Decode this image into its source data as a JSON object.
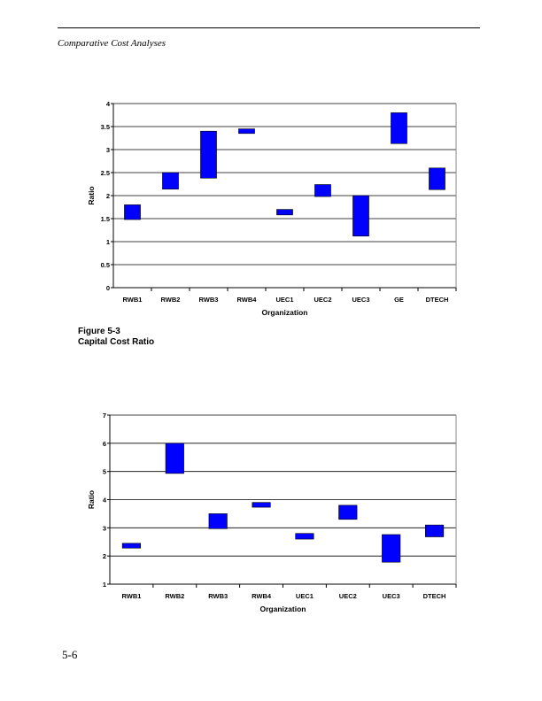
{
  "header": {
    "running_title": "Comparative Cost Analyses"
  },
  "figure_caption": {
    "number": "Figure 5-3",
    "title": "Capital Cost Ratio"
  },
  "page_number": "5-6",
  "chart_data": [
    {
      "type": "bar",
      "subtype": "floating-range",
      "categories": [
        "RWB1",
        "RWB2",
        "RWB3",
        "RWB4",
        "UEC1",
        "UEC2",
        "UEC3",
        "GE",
        "DTECH"
      ],
      "low": [
        1.48,
        2.14,
        2.38,
        3.35,
        1.58,
        1.98,
        1.12,
        3.13,
        2.13
      ],
      "high": [
        1.8,
        2.5,
        3.4,
        3.45,
        1.7,
        2.24,
        2.0,
        3.8,
        2.6
      ],
      "xlabel": "Organization",
      "ylabel": "Ratio",
      "ylim": [
        0,
        4
      ],
      "yticks": [
        "0",
        "0.5",
        "1",
        "1.5",
        "2",
        "2.5",
        "3",
        "3.5",
        "4"
      ],
      "grid": true,
      "color": "#0000ff"
    },
    {
      "type": "bar",
      "subtype": "floating-range",
      "categories": [
        "RWB1",
        "RWB2",
        "RWB3",
        "RWB4",
        "UEC1",
        "UEC2",
        "UEC3",
        "DTECH"
      ],
      "low": [
        2.28,
        4.93,
        2.97,
        3.73,
        2.6,
        3.3,
        1.78,
        2.68
      ],
      "high": [
        2.45,
        6.0,
        3.5,
        3.9,
        2.8,
        3.8,
        2.76,
        3.1
      ],
      "xlabel": "Organization",
      "ylabel": "Ratio",
      "ylim": [
        1,
        7
      ],
      "yticks": [
        "1",
        "2",
        "3",
        "4",
        "5",
        "6",
        "7"
      ],
      "grid": true,
      "color": "#0000ff"
    }
  ]
}
